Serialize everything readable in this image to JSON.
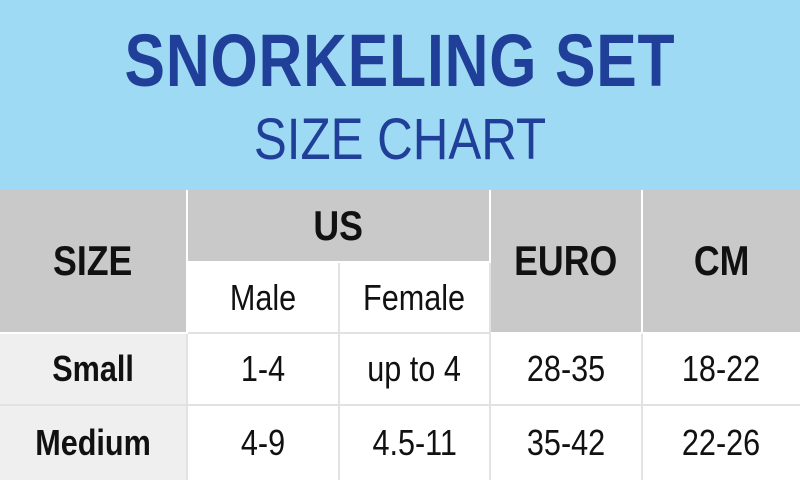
{
  "header": {
    "title": "SNORKELING SET",
    "subtitle": "SIZE CHART"
  },
  "table": {
    "headers": {
      "size": "SIZE",
      "us": "US",
      "us_sub": [
        "Male",
        "Female"
      ],
      "euro": "EURO",
      "cm": "CM"
    },
    "rows": [
      [
        "Small",
        "1-4",
        "up to 4",
        "28-35",
        "18-22"
      ],
      [
        "Medium",
        "4-9",
        "4.5-11",
        "35-42",
        "22-26"
      ]
    ]
  }
}
